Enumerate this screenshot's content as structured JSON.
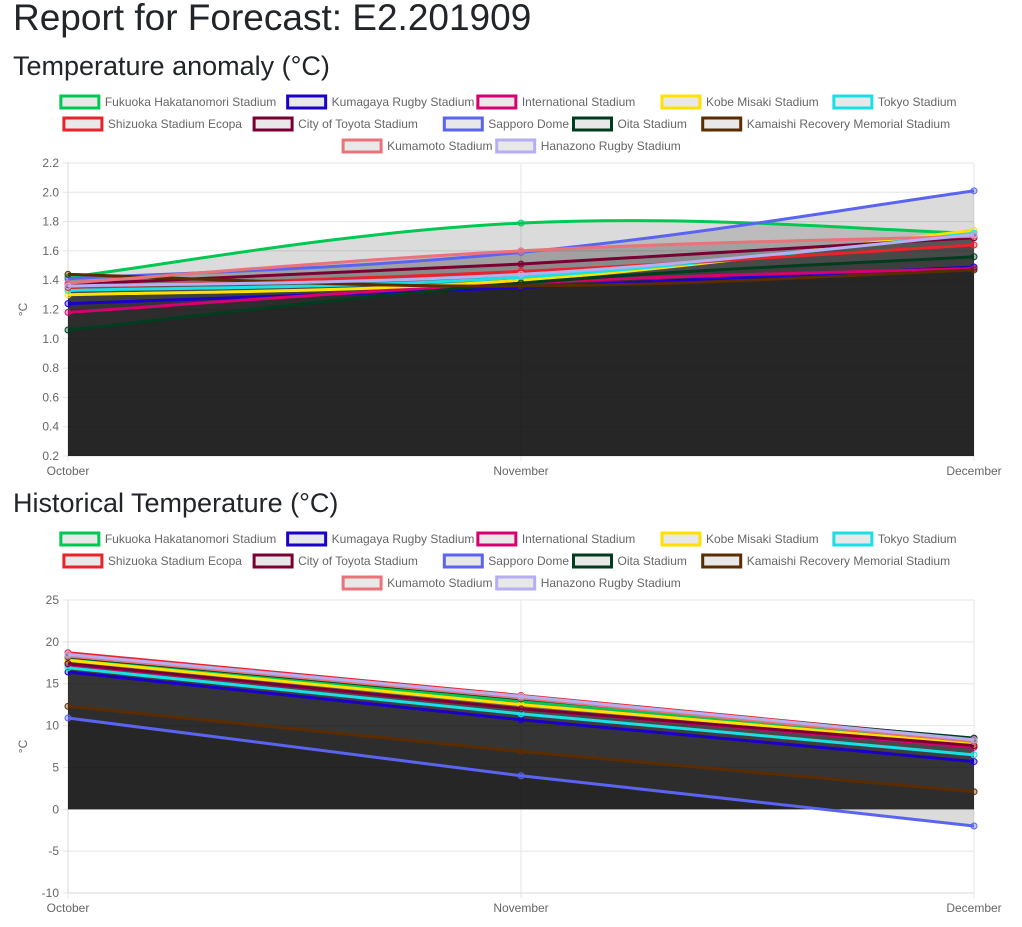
{
  "page": {
    "title": "Report for Forecast: E2.201909"
  },
  "sections": [
    {
      "title": "Temperature anomaly (°C)"
    },
    {
      "title": "Historical Temperature (°C)"
    }
  ],
  "chart_data": [
    {
      "type": "area",
      "title": "Temperature anomaly (°C)",
      "xlabel": "",
      "ylabel": "°C",
      "categories": [
        "October",
        "November",
        "December"
      ],
      "ylim": [
        0.2,
        2.2
      ],
      "yticks": [
        0.2,
        0.4,
        0.6,
        0.8,
        1.0,
        1.2,
        1.4,
        1.6,
        1.8,
        2.0,
        2.2
      ],
      "ytick_labels": [
        "0.2",
        "0.4",
        "0.6",
        "0.8",
        "1.0",
        "1.2",
        "1.4",
        "1.6",
        "1.8",
        "2.0",
        "2.2"
      ],
      "grid": true,
      "legend": "top",
      "smooth": true,
      "series": [
        {
          "name": "Fukuoka Hakatanomori Stadium",
          "color": "#00c853",
          "values": [
            1.42,
            1.79,
            1.72
          ]
        },
        {
          "name": "Kumagaya Rugby Stadium",
          "color": "#1a00c8",
          "values": [
            1.24,
            1.35,
            1.49
          ]
        },
        {
          "name": "International Stadium",
          "color": "#d6006f",
          "values": [
            1.18,
            1.38,
            1.48
          ]
        },
        {
          "name": "Kobe Misaki Stadium",
          "color": "#ffe100",
          "values": [
            1.3,
            1.4,
            1.74
          ]
        },
        {
          "name": "Tokyo Stadium",
          "color": "#18e0e6",
          "values": [
            1.33,
            1.42,
            1.72
          ]
        },
        {
          "name": "Shizuoka Stadium Ecopa",
          "color": "#e8232a",
          "values": [
            1.35,
            1.46,
            1.64
          ]
        },
        {
          "name": "City of Toyota Stadium",
          "color": "#7a0034",
          "values": [
            1.37,
            1.51,
            1.69
          ]
        },
        {
          "name": "Sapporo Dome",
          "color": "#5a64f0",
          "values": [
            1.41,
            1.59,
            2.01
          ]
        },
        {
          "name": "Oita Stadium",
          "color": "#003d1e",
          "values": [
            1.06,
            1.38,
            1.56
          ]
        },
        {
          "name": "Kamaishi Recovery Memorial Stadium",
          "color": "#5a2c00",
          "values": [
            1.44,
            1.36,
            1.47
          ]
        },
        {
          "name": "Kumamoto Stadium",
          "color": "#e8737a",
          "values": [
            1.38,
            1.6,
            1.7
          ]
        },
        {
          "name": "Hanazono Rugby Stadium",
          "color": "#b5aef0",
          "values": [
            1.36,
            1.44,
            1.71
          ]
        }
      ]
    },
    {
      "type": "area",
      "title": "Historical Temperature (°C)",
      "xlabel": "",
      "ylabel": "°C",
      "categories": [
        "October",
        "November",
        "December"
      ],
      "ylim": [
        -10,
        25
      ],
      "yticks": [
        -10,
        -5,
        0,
        5,
        10,
        15,
        20,
        25
      ],
      "ytick_labels": [
        "-10",
        "-5",
        "0",
        "5",
        "10",
        "15",
        "20",
        "25"
      ],
      "grid": true,
      "legend": "top",
      "smooth": false,
      "series": [
        {
          "name": "Fukuoka Hakatanomori Stadium",
          "color": "#00c853",
          "values": [
            18.0,
            12.9,
            8.2
          ]
        },
        {
          "name": "Kumagaya Rugby Stadium",
          "color": "#1a00c8",
          "values": [
            16.4,
            10.7,
            5.7
          ]
        },
        {
          "name": "International Stadium",
          "color": "#d6006f",
          "values": [
            17.3,
            12.0,
            7.4
          ]
        },
        {
          "name": "Kobe Misaki Stadium",
          "color": "#ffe100",
          "values": [
            17.8,
            12.5,
            7.8
          ]
        },
        {
          "name": "Tokyo Stadium",
          "color": "#18e0e6",
          "values": [
            16.9,
            11.4,
            6.5
          ]
        },
        {
          "name": "Shizuoka Stadium Ecopa",
          "color": "#e8232a",
          "values": [
            18.7,
            13.6,
            8.4
          ]
        },
        {
          "name": "City of Toyota Stadium",
          "color": "#7a0034",
          "values": [
            17.4,
            12.0,
            7.6
          ]
        },
        {
          "name": "Sapporo Dome",
          "color": "#5a64f0",
          "values": [
            10.9,
            4.0,
            -2.0
          ]
        },
        {
          "name": "Oita Stadium",
          "color": "#003d1e",
          "values": [
            18.2,
            13.2,
            8.5
          ]
        },
        {
          "name": "Kamaishi Recovery Memorial Stadium",
          "color": "#5a2c00",
          "values": [
            12.3,
            6.9,
            2.1
          ]
        },
        {
          "name": "Kumamoto Stadium",
          "color": "#e8737a",
          "values": [
            18.3,
            13.3,
            8.1
          ]
        },
        {
          "name": "Hanazono Rugby Stadium",
          "color": "#b5aef0",
          "values": [
            18.5,
            13.5,
            8.3
          ]
        }
      ]
    }
  ]
}
